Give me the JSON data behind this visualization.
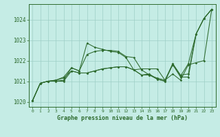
{
  "title": "Graphe pression niveau de la mer (hPa)",
  "background_color": "#c5ece5",
  "grid_color": "#9ecfc6",
  "line_color": "#2d6a2d",
  "xlim": [
    -0.5,
    23.5
  ],
  "ylim": [
    1019.75,
    1024.75
  ],
  "ytick_vals": [
    1020,
    1021,
    1022,
    1023,
    1024
  ],
  "xtick_vals": [
    0,
    1,
    2,
    3,
    4,
    5,
    6,
    7,
    8,
    9,
    10,
    11,
    12,
    13,
    14,
    15,
    16,
    17,
    18,
    19,
    20,
    21,
    22,
    23
  ],
  "series": [
    [
      1020.05,
      1020.9,
      1021.0,
      1021.0,
      1021.05,
      1021.65,
      1021.5,
      1022.3,
      1022.45,
      1022.5,
      1022.5,
      1022.45,
      1022.2,
      1022.15,
      1021.55,
      1021.3,
      1021.15,
      1021.05,
      1021.85,
      1021.3,
      1021.35,
      1023.3,
      1024.05,
      1024.5
    ],
    [
      1020.05,
      1020.9,
      1021.0,
      1021.05,
      1021.2,
      1021.65,
      1021.5,
      1022.85,
      1022.65,
      1022.55,
      1022.45,
      1022.4,
      1022.15,
      1021.55,
      1021.3,
      1021.35,
      1021.1,
      1021.0,
      1021.85,
      1021.25,
      1021.85,
      1023.3,
      1024.05,
      1024.5
    ],
    [
      1020.05,
      1020.9,
      1021.0,
      1021.0,
      1021.0,
      1021.5,
      1021.4,
      1021.4,
      1021.5,
      1021.6,
      1021.65,
      1021.7,
      1021.7,
      1021.55,
      1021.3,
      1021.3,
      1021.1,
      1021.0,
      1021.8,
      1021.2,
      1021.2,
      1023.3,
      1024.05,
      1024.5
    ],
    [
      1020.05,
      1020.9,
      1021.0,
      1021.05,
      1021.15,
      1021.5,
      1021.4,
      1021.4,
      1021.5,
      1021.6,
      1021.65,
      1021.7,
      1021.7,
      1021.55,
      1021.6,
      1021.6,
      1021.6,
      1021.05,
      1021.35,
      1021.05,
      1021.8,
      1021.9,
      1022.0,
      1024.5
    ]
  ]
}
